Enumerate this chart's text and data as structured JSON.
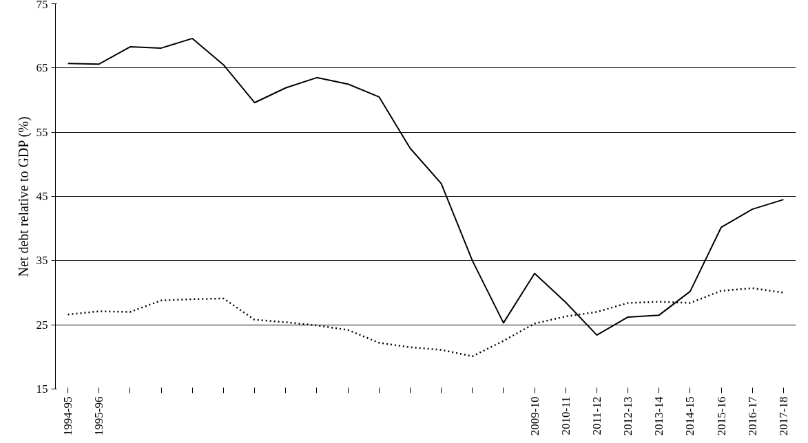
{
  "chart_data": {
    "type": "line",
    "ylabel": "Net debt relative to GDP (%)",
    "categories": [
      "1994-95",
      "1995-96",
      null,
      null,
      null,
      null,
      null,
      null,
      null,
      null,
      null,
      null,
      null,
      null,
      null,
      "2009-10",
      "2010-11",
      "2011-12",
      "2012-13",
      "2013-14",
      "2014-15",
      "2015-16",
      "2016-17",
      "2017-18"
    ],
    "series": [
      {
        "color": "#000000",
        "line_style": "solid",
        "values": [
          65.7,
          65.6,
          68.3,
          68.1,
          69.6,
          65.5,
          59.6,
          61.9,
          63.5,
          62.5,
          60.5,
          52.5,
          47,
          35,
          25.3,
          33,
          28.5,
          23.4,
          26.2,
          26.5,
          30.2,
          40.2,
          43,
          44.5
        ]
      },
      {
        "color": "#000000",
        "line_style": "dotted",
        "values": [
          26.6,
          27.1,
          27,
          28.8,
          29,
          29.1,
          25.8,
          25.4,
          24.9,
          24.2,
          22.2,
          21.5,
          21.1,
          20.1,
          22.5,
          25.2,
          26.3,
          27,
          28.4,
          28.6,
          28.4,
          30.3,
          30.7,
          30
        ]
      }
    ],
    "ylim": [
      15,
      75
    ],
    "yticks": [
      15,
      25,
      35,
      45,
      55,
      65,
      75
    ],
    "grid": "y",
    "marker": "none"
  }
}
